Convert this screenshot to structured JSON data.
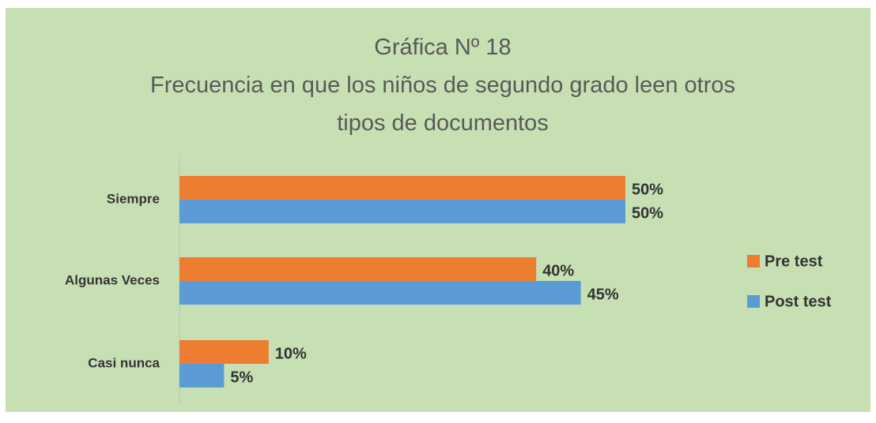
{
  "chart_data": {
    "type": "bar",
    "orientation": "horizontal",
    "title": "Gráfica Nº 18",
    "subtitle": "Frecuencia en que los niños de segundo grado leen otros tipos de documentos",
    "categories": [
      "Siempre",
      "Algunas Veces",
      "Casi nunca"
    ],
    "series": [
      {
        "name": "Pre test",
        "color": "#ed7d31",
        "values": [
          50,
          40,
          10
        ],
        "value_labels": [
          "50%",
          "40%",
          "10%"
        ]
      },
      {
        "name": "Post test",
        "color": "#5b9bd5",
        "values": [
          50,
          45,
          5
        ],
        "value_labels": [
          "50%",
          "45%",
          "5%"
        ]
      }
    ],
    "legend": "right"
  }
}
